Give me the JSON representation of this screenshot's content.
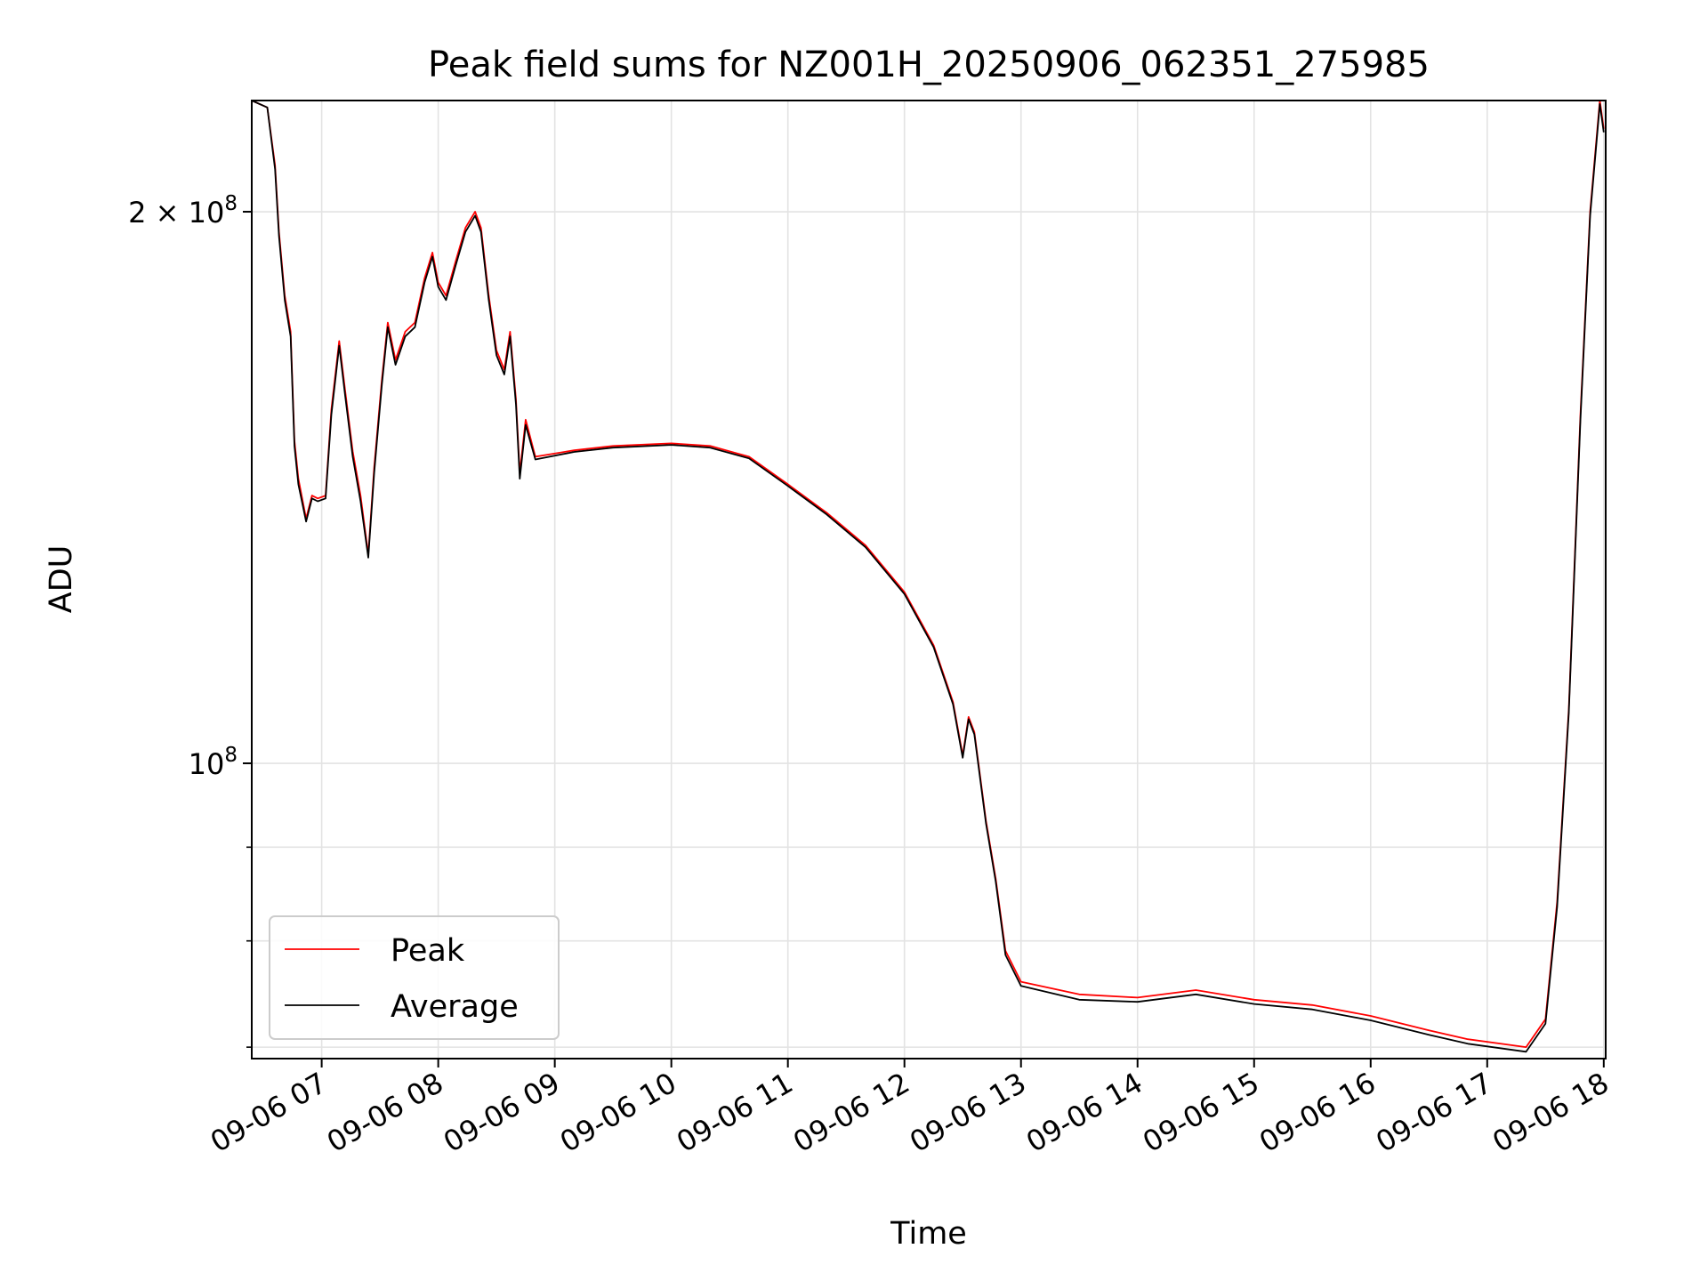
{
  "chart_data": {
    "type": "line",
    "title": "Peak field sums for NZ001H_20250906_062351_275985",
    "xlabel": "Time",
    "ylabel": "ADU",
    "x_scale": "time",
    "y_scale": "log",
    "xlim": [
      "2025-09-06 06:24",
      "2025-09-06 18:01"
    ],
    "ylim": [
      69000000,
      230000000
    ],
    "grid": true,
    "legend": "lower-left",
    "x_ticks": [
      "09-06 07",
      "09-06 08",
      "09-06 09",
      "09-06 10",
      "09-06 11",
      "09-06 12",
      "09-06 13",
      "09-06 14",
      "09-06 15",
      "09-06 16",
      "09-06 17",
      "09-06 18"
    ],
    "y_ticks": [
      {
        "label_base": "2 × 10",
        "label_exp": "8",
        "value": 200000000
      },
      {
        "label_base": "10",
        "label_exp": "8",
        "value": 100000000
      }
    ],
    "series": [
      {
        "name": "Peak",
        "color": "#ff0000",
        "points": [
          [
            "2025-09-06 06:24",
            230000000
          ],
          [
            "2025-09-06 06:32",
            228000000
          ],
          [
            "2025-09-06 06:36",
            212000000
          ],
          [
            "2025-09-06 06:38",
            195000000
          ],
          [
            "2025-09-06 06:41",
            180000000
          ],
          [
            "2025-09-06 06:44",
            172000000
          ],
          [
            "2025-09-06 06:46",
            150000000
          ],
          [
            "2025-09-06 06:48",
            143000000
          ],
          [
            "2025-09-06 06:52",
            136000000
          ],
          [
            "2025-09-06 06:55",
            140000000
          ],
          [
            "2025-09-06 06:58",
            139500000
          ],
          [
            "2025-09-06 07:02",
            140000000
          ],
          [
            "2025-09-06 07:05",
            156000000
          ],
          [
            "2025-09-06 07:09",
            170000000
          ],
          [
            "2025-09-06 07:12",
            160000000
          ],
          [
            "2025-09-06 07:16",
            148000000
          ],
          [
            "2025-09-06 07:20",
            140000000
          ],
          [
            "2025-09-06 07:24",
            130000000
          ],
          [
            "2025-09-06 07:27",
            145000000
          ],
          [
            "2025-09-06 07:31",
            162000000
          ],
          [
            "2025-09-06 07:34",
            174000000
          ],
          [
            "2025-09-06 07:38",
            166000000
          ],
          [
            "2025-09-06 07:43",
            172000000
          ],
          [
            "2025-09-06 07:48",
            174000000
          ],
          [
            "2025-09-06 07:53",
            184000000
          ],
          [
            "2025-09-06 07:57",
            190000000
          ],
          [
            "2025-09-06 08:00",
            183000000
          ],
          [
            "2025-09-06 08:04",
            180000000
          ],
          [
            "2025-09-06 08:09",
            188000000
          ],
          [
            "2025-09-06 08:14",
            196000000
          ],
          [
            "2025-09-06 08:19",
            200000000
          ],
          [
            "2025-09-06 08:22",
            196000000
          ],
          [
            "2025-09-06 08:26",
            180000000
          ],
          [
            "2025-09-06 08:30",
            168000000
          ],
          [
            "2025-09-06 08:34",
            164000000
          ],
          [
            "2025-09-06 08:37",
            172000000
          ],
          [
            "2025-09-06 08:40",
            158000000
          ],
          [
            "2025-09-06 08:42",
            144000000
          ],
          [
            "2025-09-06 08:45",
            154000000
          ],
          [
            "2025-09-06 08:50",
            147000000
          ],
          [
            "2025-09-06 09:10",
            148200000
          ],
          [
            "2025-09-06 09:30",
            149000000
          ],
          [
            "2025-09-06 10:00",
            149500000
          ],
          [
            "2025-09-06 10:20",
            149000000
          ],
          [
            "2025-09-06 10:40",
            147000000
          ],
          [
            "2025-09-06 11:00",
            142000000
          ],
          [
            "2025-09-06 11:20",
            137000000
          ],
          [
            "2025-09-06 11:40",
            131500000
          ],
          [
            "2025-09-06 12:00",
            124000000
          ],
          [
            "2025-09-06 12:15",
            116000000
          ],
          [
            "2025-09-06 12:25",
            108000000
          ],
          [
            "2025-09-06 12:30",
            101000000
          ],
          [
            "2025-09-06 12:33",
            106000000
          ],
          [
            "2025-09-06 12:36",
            104000000
          ],
          [
            "2025-09-06 12:42",
            93000000
          ],
          [
            "2025-09-06 12:47",
            86500000
          ],
          [
            "2025-09-06 12:52",
            79000000
          ],
          [
            "2025-09-06 13:00",
            76000000
          ],
          [
            "2025-09-06 13:30",
            74800000
          ],
          [
            "2025-09-06 14:00",
            74500000
          ],
          [
            "2025-09-06 14:30",
            75200000
          ],
          [
            "2025-09-06 15:00",
            74300000
          ],
          [
            "2025-09-06 15:30",
            73800000
          ],
          [
            "2025-09-06 16:00",
            72800000
          ],
          [
            "2025-09-06 16:30",
            71500000
          ],
          [
            "2025-09-06 16:50",
            70700000
          ],
          [
            "2025-09-06 17:20",
            70000000
          ],
          [
            "2025-09-06 17:30",
            72500000
          ],
          [
            "2025-09-06 17:36",
            84000000
          ],
          [
            "2025-09-06 17:42",
            107000000
          ],
          [
            "2025-09-06 17:48",
            155000000
          ],
          [
            "2025-09-06 17:53",
            200000000
          ],
          [
            "2025-09-06 17:58",
            230000000
          ],
          [
            "2025-09-06 18:00",
            222000000
          ]
        ]
      },
      {
        "name": "Average",
        "color": "#000000",
        "points": [
          [
            "2025-09-06 06:24",
            230000000
          ],
          [
            "2025-09-06 06:32",
            228000000
          ],
          [
            "2025-09-06 06:36",
            211000000
          ],
          [
            "2025-09-06 06:38",
            194000000
          ],
          [
            "2025-09-06 06:41",
            179000000
          ],
          [
            "2025-09-06 06:44",
            171000000
          ],
          [
            "2025-09-06 06:46",
            149000000
          ],
          [
            "2025-09-06 06:48",
            142000000
          ],
          [
            "2025-09-06 06:52",
            135500000
          ],
          [
            "2025-09-06 06:55",
            139500000
          ],
          [
            "2025-09-06 06:58",
            139000000
          ],
          [
            "2025-09-06 07:02",
            139500000
          ],
          [
            "2025-09-06 07:05",
            155000000
          ],
          [
            "2025-09-06 07:09",
            169000000
          ],
          [
            "2025-09-06 07:12",
            159000000
          ],
          [
            "2025-09-06 07:16",
            147000000
          ],
          [
            "2025-09-06 07:20",
            139000000
          ],
          [
            "2025-09-06 07:24",
            129500000
          ],
          [
            "2025-09-06 07:27",
            144000000
          ],
          [
            "2025-09-06 07:31",
            161000000
          ],
          [
            "2025-09-06 07:34",
            173000000
          ],
          [
            "2025-09-06 07:38",
            165000000
          ],
          [
            "2025-09-06 07:43",
            171000000
          ],
          [
            "2025-09-06 07:48",
            173000000
          ],
          [
            "2025-09-06 07:53",
            183000000
          ],
          [
            "2025-09-06 07:57",
            189000000
          ],
          [
            "2025-09-06 08:00",
            182000000
          ],
          [
            "2025-09-06 08:04",
            179000000
          ],
          [
            "2025-09-06 08:09",
            187000000
          ],
          [
            "2025-09-06 08:14",
            195000000
          ],
          [
            "2025-09-06 08:19",
            199000000
          ],
          [
            "2025-09-06 08:22",
            195000000
          ],
          [
            "2025-09-06 08:26",
            179000000
          ],
          [
            "2025-09-06 08:30",
            167000000
          ],
          [
            "2025-09-06 08:34",
            163000000
          ],
          [
            "2025-09-06 08:37",
            171000000
          ],
          [
            "2025-09-06 08:40",
            157000000
          ],
          [
            "2025-09-06 08:42",
            143000000
          ],
          [
            "2025-09-06 08:45",
            153000000
          ],
          [
            "2025-09-06 08:50",
            146500000
          ],
          [
            "2025-09-06 09:10",
            147900000
          ],
          [
            "2025-09-06 09:30",
            148700000
          ],
          [
            "2025-09-06 10:00",
            149200000
          ],
          [
            "2025-09-06 10:20",
            148700000
          ],
          [
            "2025-09-06 10:40",
            146700000
          ],
          [
            "2025-09-06 11:00",
            141700000
          ],
          [
            "2025-09-06 11:20",
            136700000
          ],
          [
            "2025-09-06 11:40",
            131200000
          ],
          [
            "2025-09-06 12:00",
            123700000
          ],
          [
            "2025-09-06 12:15",
            115700000
          ],
          [
            "2025-09-06 12:25",
            107700000
          ],
          [
            "2025-09-06 12:30",
            100700000
          ],
          [
            "2025-09-06 12:33",
            105700000
          ],
          [
            "2025-09-06 12:36",
            103700000
          ],
          [
            "2025-09-06 12:42",
            92700000
          ],
          [
            "2025-09-06 12:47",
            86200000
          ],
          [
            "2025-09-06 12:52",
            78600000
          ],
          [
            "2025-09-06 13:00",
            75600000
          ],
          [
            "2025-09-06 13:30",
            74300000
          ],
          [
            "2025-09-06 14:00",
            74100000
          ],
          [
            "2025-09-06 14:30",
            74800000
          ],
          [
            "2025-09-06 15:00",
            73900000
          ],
          [
            "2025-09-06 15:30",
            73400000
          ],
          [
            "2025-09-06 16:00",
            72400000
          ],
          [
            "2025-09-06 16:30",
            71100000
          ],
          [
            "2025-09-06 16:50",
            70300000
          ],
          [
            "2025-09-06 17:20",
            69600000
          ],
          [
            "2025-09-06 17:30",
            72100000
          ],
          [
            "2025-09-06 17:36",
            83500000
          ],
          [
            "2025-09-06 17:42",
            106500000
          ],
          [
            "2025-09-06 17:48",
            154000000
          ],
          [
            "2025-09-06 17:53",
            199000000
          ],
          [
            "2025-09-06 17:58",
            229000000
          ],
          [
            "2025-09-06 18:00",
            221000000
          ]
        ]
      }
    ]
  }
}
